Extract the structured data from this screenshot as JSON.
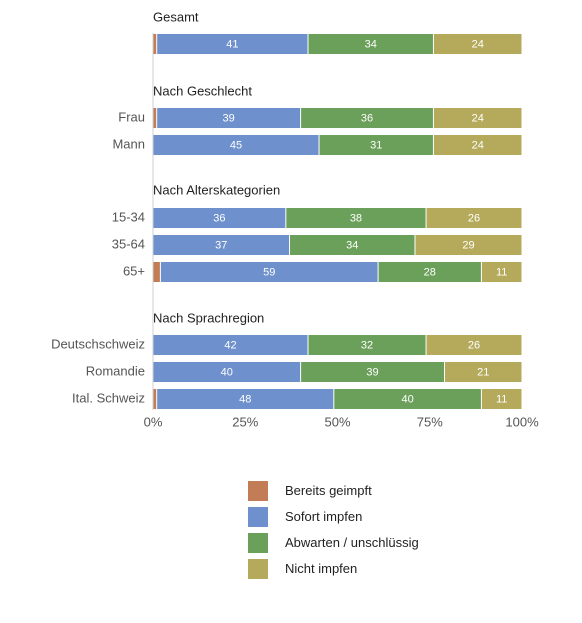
{
  "chart_data": {
    "type": "bar",
    "orientation": "horizontal",
    "stacked": true,
    "xlim": [
      0,
      100
    ],
    "x_tick_labels": [
      "0%",
      "25%",
      "50%",
      "75%",
      "100%"
    ],
    "legend_position": "bottom",
    "series": [
      {
        "name": "Bereits geimpft",
        "color": "#C27D57"
      },
      {
        "name": "Sofort impfen",
        "color": "#6E91CE"
      },
      {
        "name": "Abwarten / unschlüssig",
        "color": "#6AA05A"
      },
      {
        "name": "Nicht impfen",
        "color": "#B5AA5B"
      }
    ],
    "groups": [
      {
        "title": "Gesamt",
        "rows": [
          {
            "label": "",
            "values": [
              1,
              41,
              34,
              24
            ],
            "labels": [
              "",
              "41",
              "34",
              "24"
            ]
          }
        ]
      },
      {
        "title": "Nach Geschlecht",
        "rows": [
          {
            "label": "Frau",
            "values": [
              1,
              39,
              36,
              24
            ],
            "labels": [
              "",
              "39",
              "36",
              "24"
            ]
          },
          {
            "label": "Mann",
            "values": [
              0,
              45,
              31,
              24
            ],
            "labels": [
              "",
              "45",
              "31",
              "24"
            ]
          }
        ]
      },
      {
        "title": "Nach Alterskategorien",
        "rows": [
          {
            "label": "15-34",
            "values": [
              0,
              36,
              38,
              26
            ],
            "labels": [
              "",
              "36",
              "38",
              "26"
            ]
          },
          {
            "label": "35-64",
            "values": [
              0,
              37,
              34,
              29
            ],
            "labels": [
              "",
              "37",
              "34",
              "29"
            ]
          },
          {
            "label": "65+",
            "values": [
              2,
              59,
              28,
              11
            ],
            "labels": [
              "",
              "59",
              "28",
              "11"
            ]
          }
        ]
      },
      {
        "title": "Nach Sprachregion",
        "rows": [
          {
            "label": "Deutschschweiz",
            "values": [
              0,
              42,
              32,
              26
            ],
            "labels": [
              "",
              "42",
              "32",
              "26"
            ]
          },
          {
            "label": "Romandie",
            "values": [
              0,
              40,
              39,
              21
            ],
            "labels": [
              "",
              "40",
              "39",
              "21"
            ]
          },
          {
            "label": "Ital. Schweiz",
            "values": [
              1,
              48,
              40,
              11
            ],
            "labels": [
              "",
              "48",
              "40",
              "11"
            ]
          }
        ]
      }
    ]
  }
}
